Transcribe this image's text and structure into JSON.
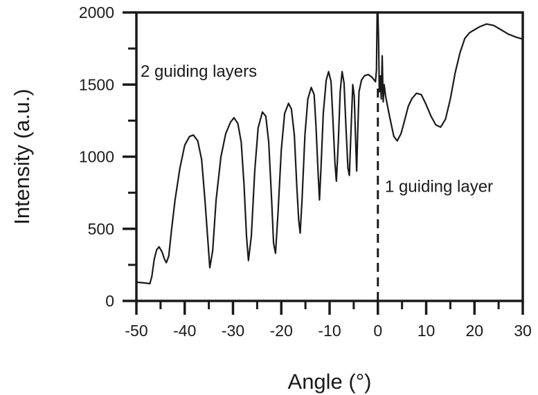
{
  "chart_data": {
    "type": "line",
    "title": "",
    "xlabel": "Angle (°)",
    "ylabel": "Intensity (a.u.)",
    "xlim": [
      -50,
      30
    ],
    "ylim": [
      0,
      2000
    ],
    "xticks": [
      -50,
      -40,
      -30,
      -20,
      -10,
      0,
      10,
      20,
      30
    ],
    "yticks": [
      0,
      500,
      1000,
      1500,
      2000
    ],
    "grid": false,
    "line_color": "#1a1a1a",
    "series": [
      {
        "points": [
          [
            -50,
            130
          ],
          [
            -48.5,
            125
          ],
          [
            -47.2,
            120
          ],
          [
            -46.8,
            170
          ],
          [
            -46.3,
            290
          ],
          [
            -45.8,
            355
          ],
          [
            -45.3,
            375
          ],
          [
            -44.7,
            340
          ],
          [
            -44.2,
            290
          ],
          [
            -43.8,
            265
          ],
          [
            -43.3,
            310
          ],
          [
            -42.7,
            500
          ],
          [
            -42,
            700
          ],
          [
            -41,
            920
          ],
          [
            -40,
            1080
          ],
          [
            -39,
            1140
          ],
          [
            -38.2,
            1150
          ],
          [
            -37.3,
            1110
          ],
          [
            -36.5,
            980
          ],
          [
            -35.8,
            700
          ],
          [
            -35.2,
            420
          ],
          [
            -34.8,
            230
          ],
          [
            -34.2,
            350
          ],
          [
            -33.5,
            700
          ],
          [
            -32.5,
            1000
          ],
          [
            -31.5,
            1160
          ],
          [
            -30.5,
            1240
          ],
          [
            -29.8,
            1270
          ],
          [
            -29,
            1230
          ],
          [
            -28.3,
            1100
          ],
          [
            -27.7,
            800
          ],
          [
            -27.2,
            450
          ],
          [
            -26.8,
            280
          ],
          [
            -26.2,
            450
          ],
          [
            -25.5,
            900
          ],
          [
            -24.8,
            1200
          ],
          [
            -23.9,
            1310
          ],
          [
            -23.2,
            1280
          ],
          [
            -22.6,
            1100
          ],
          [
            -22,
            700
          ],
          [
            -21.6,
            400
          ],
          [
            -21.2,
            330
          ],
          [
            -20.7,
            600
          ],
          [
            -20,
            1050
          ],
          [
            -19.3,
            1300
          ],
          [
            -18.5,
            1370
          ],
          [
            -17.9,
            1330
          ],
          [
            -17.3,
            1150
          ],
          [
            -16.8,
            800
          ],
          [
            -16.4,
            560
          ],
          [
            -16.1,
            470
          ],
          [
            -15.7,
            700
          ],
          [
            -15.1,
            1150
          ],
          [
            -14.5,
            1400
          ],
          [
            -13.8,
            1480
          ],
          [
            -13.2,
            1430
          ],
          [
            -12.8,
            1200
          ],
          [
            -12.4,
            900
          ],
          [
            -12.1,
            700
          ],
          [
            -11.8,
            900
          ],
          [
            -11.3,
            1300
          ],
          [
            -10.7,
            1530
          ],
          [
            -10.2,
            1590
          ],
          [
            -9.7,
            1520
          ],
          [
            -9.3,
            1250
          ],
          [
            -8.9,
            960
          ],
          [
            -8.6,
            830
          ],
          [
            -8.2,
            1100
          ],
          [
            -7.8,
            1450
          ],
          [
            -7.4,
            1590
          ],
          [
            -7,
            1510
          ],
          [
            -6.6,
            1200
          ],
          [
            -6.2,
            920
          ],
          [
            -5.9,
            870
          ],
          [
            -5.6,
            1150
          ],
          [
            -5.2,
            1500
          ],
          [
            -4.9,
            1420
          ],
          [
            -4.6,
            1100
          ],
          [
            -4.4,
            900
          ],
          [
            -4.2,
            1150
          ],
          [
            -3.9,
            1450
          ],
          [
            -3.4,
            1530
          ],
          [
            -2.8,
            1560
          ],
          [
            -2,
            1570
          ],
          [
            -1.2,
            1550
          ],
          [
            -0.5,
            1520
          ],
          [
            -0.3,
            1600
          ],
          [
            -0.15,
            2000
          ],
          [
            0,
            2000
          ],
          [
            0.15,
            1800
          ],
          [
            0.3,
            1450
          ],
          [
            0.5,
            1560
          ],
          [
            0.7,
            1400
          ],
          [
            0.9,
            1700
          ],
          [
            1.1,
            1380
          ],
          [
            1.3,
            1500
          ],
          [
            1.6,
            1420
          ],
          [
            2,
            1350
          ],
          [
            2.6,
            1250
          ],
          [
            3.3,
            1140
          ],
          [
            4,
            1110
          ],
          [
            4.8,
            1160
          ],
          [
            5.6,
            1260
          ],
          [
            6.3,
            1350
          ],
          [
            7,
            1400
          ],
          [
            8,
            1440
          ],
          [
            9,
            1430
          ],
          [
            10,
            1360
          ],
          [
            11,
            1280
          ],
          [
            12,
            1220
          ],
          [
            13,
            1205
          ],
          [
            14,
            1260
          ],
          [
            15,
            1400
          ],
          [
            16,
            1580
          ],
          [
            17,
            1720
          ],
          [
            18,
            1820
          ],
          [
            19,
            1860
          ],
          [
            20,
            1880
          ],
          [
            21,
            1900
          ],
          [
            22.5,
            1920
          ],
          [
            24,
            1910
          ],
          [
            25.5,
            1880
          ],
          [
            27,
            1850
          ],
          [
            28.5,
            1830
          ],
          [
            30,
            1815
          ]
        ]
      }
    ],
    "reference_line": {
      "x": 0,
      "style": "dashed"
    },
    "annotations": [
      {
        "text": "2 guiding layers",
        "x": -50,
        "y": 1555
      },
      {
        "text": "1 guiding layer",
        "x": 0.6,
        "y": 755
      }
    ]
  }
}
